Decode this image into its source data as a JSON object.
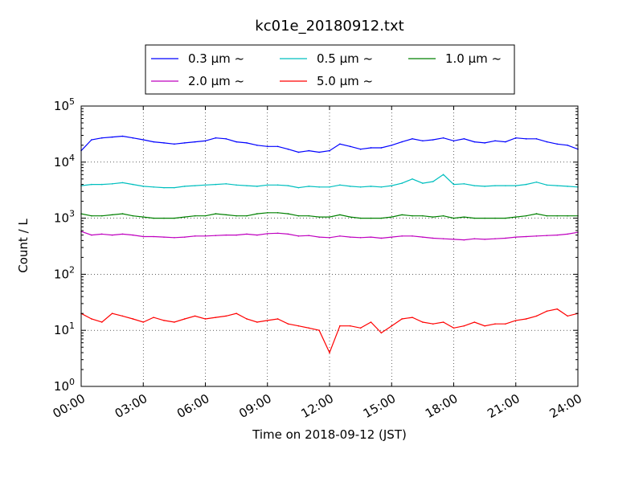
{
  "chart_data": {
    "type": "line",
    "title": "kc01e_20180912.txt",
    "xlabel": "Time on 2018-09-12 (JST)",
    "ylabel": "Count / L",
    "yscale": "log",
    "ylim": [
      1,
      100000
    ],
    "xlim": [
      "00:00",
      "24:00"
    ],
    "grid": true,
    "legend_position": "top",
    "x_tick_labels": [
      "00:00",
      "03:00",
      "06:00",
      "09:00",
      "12:00",
      "15:00",
      "18:00",
      "21:00",
      "24:00"
    ],
    "y_tick_labels": [
      {
        "base": "10",
        "exp": "0"
      },
      {
        "base": "10",
        "exp": "1"
      },
      {
        "base": "10",
        "exp": "2"
      },
      {
        "base": "10",
        "exp": "3"
      },
      {
        "base": "10",
        "exp": "4"
      },
      {
        "base": "10",
        "exp": "5"
      }
    ],
    "x": [
      "00:00",
      "00:30",
      "01:00",
      "01:30",
      "02:00",
      "02:30",
      "03:00",
      "03:30",
      "04:00",
      "04:30",
      "05:00",
      "05:30",
      "06:00",
      "06:30",
      "07:00",
      "07:30",
      "08:00",
      "08:30",
      "09:00",
      "09:30",
      "10:00",
      "10:30",
      "11:00",
      "11:30",
      "12:00",
      "12:30",
      "13:00",
      "13:30",
      "14:00",
      "14:30",
      "15:00",
      "15:30",
      "16:00",
      "16:30",
      "17:00",
      "17:30",
      "18:00",
      "18:30",
      "19:00",
      "19:30",
      "20:00",
      "20:30",
      "21:00",
      "21:30",
      "22:00",
      "22:30",
      "23:00",
      "23:30",
      "24:00"
    ],
    "series": [
      {
        "name": "0.3 μm ~",
        "color": "#0000ff",
        "values": [
          16000,
          25000,
          27000,
          28000,
          29000,
          27000,
          25000,
          23000,
          22000,
          21000,
          22000,
          23000,
          24000,
          27000,
          26000,
          23000,
          22000,
          20000,
          19000,
          19000,
          17000,
          15000,
          16000,
          15000,
          16000,
          21000,
          19000,
          17000,
          18000,
          18000,
          20000,
          23000,
          26000,
          24000,
          25000,
          27000,
          24000,
          26000,
          23000,
          22000,
          24000,
          23000,
          27000,
          26000,
          26000,
          23000,
          21000,
          20000,
          17000
        ]
      },
      {
        "name": "0.5 μm ~",
        "color": "#00bfbf",
        "values": [
          3800,
          4000,
          4000,
          4100,
          4300,
          4000,
          3700,
          3600,
          3500,
          3500,
          3700,
          3800,
          3900,
          4000,
          4100,
          3900,
          3800,
          3700,
          3900,
          3900,
          3800,
          3500,
          3700,
          3600,
          3600,
          3900,
          3700,
          3600,
          3700,
          3600,
          3800,
          4200,
          5000,
          4200,
          4500,
          6000,
          4000,
          4100,
          3800,
          3700,
          3800,
          3800,
          3800,
          4000,
          4400,
          3900,
          3800,
          3700,
          3600
        ]
      },
      {
        "name": "1.0 μm ~",
        "color": "#008000",
        "values": [
          1200,
          1100,
          1100,
          1150,
          1200,
          1100,
          1050,
          1000,
          1000,
          1000,
          1050,
          1100,
          1100,
          1200,
          1150,
          1100,
          1100,
          1200,
          1250,
          1250,
          1200,
          1100,
          1100,
          1050,
          1050,
          1150,
          1050,
          1000,
          1000,
          1000,
          1050,
          1150,
          1100,
          1100,
          1050,
          1100,
          1000,
          1050,
          1000,
          1000,
          1000,
          1000,
          1050,
          1100,
          1200,
          1100,
          1100,
          1100,
          1100
        ]
      },
      {
        "name": "2.0 μm ~",
        "color": "#bf00bf",
        "values": [
          580,
          500,
          520,
          500,
          520,
          500,
          470,
          470,
          460,
          450,
          460,
          480,
          480,
          490,
          500,
          500,
          520,
          500,
          530,
          540,
          520,
          480,
          490,
          460,
          450,
          480,
          460,
          450,
          460,
          440,
          460,
          480,
          480,
          460,
          440,
          430,
          420,
          410,
          430,
          420,
          430,
          440,
          460,
          470,
          480,
          490,
          500,
          520,
          560
        ]
      },
      {
        "name": "5.0 μm ~",
        "color": "#ff0000",
        "values": [
          20,
          16,
          14,
          20,
          18,
          16,
          14,
          17,
          15,
          14,
          16,
          18,
          16,
          17,
          18,
          20,
          16,
          14,
          15,
          16,
          13,
          12,
          11,
          10,
          4,
          12,
          12,
          11,
          14,
          9,
          12,
          16,
          17,
          14,
          13,
          14,
          11,
          12,
          14,
          12,
          13,
          13,
          15,
          16,
          18,
          22,
          24,
          18,
          20
        ]
      }
    ]
  }
}
